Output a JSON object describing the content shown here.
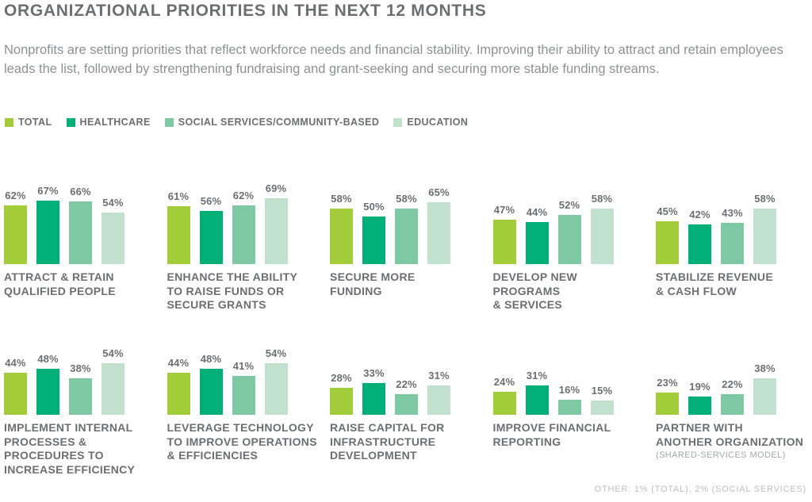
{
  "header": {
    "title": "ORGANIZATIONAL PRIORITIES IN THE NEXT 12 MONTHS",
    "subtitle": "Nonprofits are setting priorities that reflect workforce needs and financial stability. Improving their ability to attract and retain employees leads the list, followed by strengthening fundraising and grant-seeking and securing more stable funding streams."
  },
  "colors": {
    "heading_text": "#6d6e71",
    "body_text": "#8e9093",
    "value_text": "#6d6e71",
    "sublabel_text": "#a5a7aa",
    "footnote_text": "#bcbec0"
  },
  "chart_data": {
    "type": "bar",
    "title": "ORGANIZATIONAL PRIORITIES IN THE NEXT 12 MONTHS",
    "unit": "%",
    "ylim": [
      0,
      100
    ],
    "grid": false,
    "legend_position": "top",
    "series": [
      {
        "name": "TOTAL",
        "color": "#a3cc3a"
      },
      {
        "name": "HEALTHCARE",
        "color": "#00b077"
      },
      {
        "name": "SOCIAL SERVICES/COMMUNITY-BASED",
        "color": "#7fc8a4"
      },
      {
        "name": "EDUCATION",
        "color": "#c2e0ce"
      }
    ],
    "rows": [
      {
        "groups": [
          {
            "label": "ATTRACT & RETAIN\nQUALIFIED PEOPLE",
            "values": [
              62,
              67,
              66,
              54
            ]
          },
          {
            "label": "ENHANCE THE ABILITY\nTO RAISE FUNDS OR\nSECURE GRANTS",
            "values": [
              61,
              56,
              62,
              69
            ]
          },
          {
            "label": "SECURE MORE\nFUNDING",
            "values": [
              58,
              50,
              58,
              65
            ]
          },
          {
            "label": "DEVELOP NEW\nPROGRAMS\n& SERVICES",
            "values": [
              47,
              44,
              52,
              58
            ]
          },
          {
            "label": "STABILIZE REVENUE\n& CASH FLOW",
            "values": [
              45,
              42,
              43,
              58
            ]
          }
        ]
      },
      {
        "groups": [
          {
            "label": "IMPLEMENT INTERNAL\nPROCESSES &\nPROCEDURES TO\nINCREASE EFFICIENCY",
            "values": [
              44,
              48,
              38,
              54
            ]
          },
          {
            "label": "LEVERAGE TECHNOLOGY\nTO IMPROVE OPERATIONS\n& EFFICIENCIES",
            "values": [
              44,
              48,
              41,
              54
            ]
          },
          {
            "label": "RAISE CAPITAL FOR\nINFRASTRUCTURE\nDEVELOPMENT",
            "values": [
              28,
              33,
              22,
              31
            ]
          },
          {
            "label": "IMPROVE FINANCIAL\nREPORTING",
            "values": [
              24,
              31,
              16,
              15
            ]
          },
          {
            "label": "PARTNER WITH\nANOTHER ORGANIZATION",
            "sublabel": "(SHARED-SERVICES MODEL)",
            "values": [
              23,
              19,
              22,
              38
            ]
          }
        ]
      }
    ]
  },
  "footnote": "OTHER: 1% (TOTAL), 2% (SOCIAL SERVICES)"
}
